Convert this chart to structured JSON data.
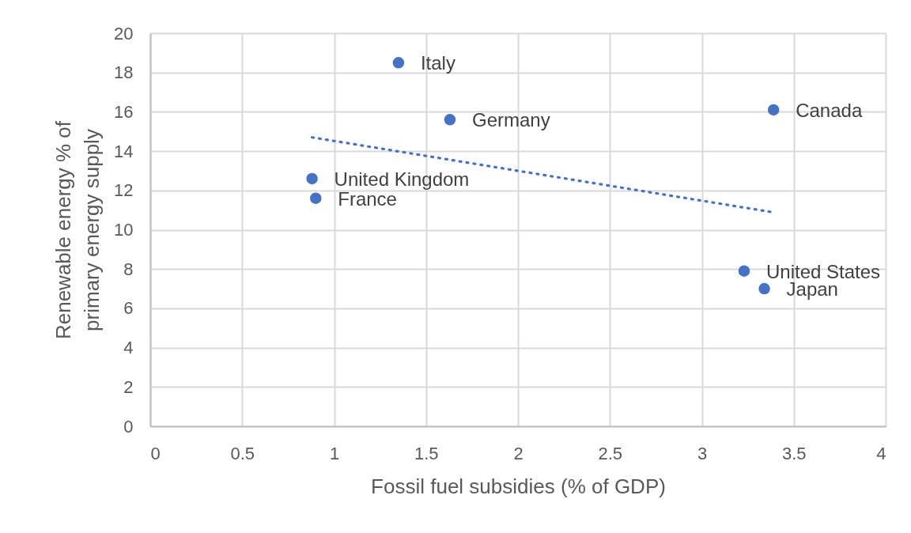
{
  "chart_data": {
    "type": "scatter",
    "xlabel": "Fossil fuel subsidies (% of GDP)",
    "ylabel": "Renewable energy % of primary energy supply",
    "xlim": [
      0,
      4
    ],
    "xticks": [
      0,
      0.5,
      1,
      1.5,
      2,
      2.5,
      3,
      3.5,
      4
    ],
    "ylim": [
      0,
      20
    ],
    "yticks": [
      0,
      2,
      4,
      6,
      8,
      10,
      12,
      14,
      16,
      18,
      20
    ],
    "grid": true,
    "series": [
      {
        "color": "#4472c4",
        "marker": "circle",
        "x": [
          1.35,
          1.63,
          3.39,
          0.88,
          0.9,
          3.23,
          3.34
        ],
        "values": [
          18.5,
          15.6,
          16.1,
          12.6,
          11.6,
          7.9,
          7.0
        ]
      },
      {
        "type": "line",
        "color": "#4472c4",
        "line_style": "dotted",
        "x": [
          0.88,
          3.38
        ],
        "values": [
          14.7,
          10.9
        ]
      }
    ],
    "annotations": [
      {
        "text": "Italy",
        "x": 1.35,
        "y": 18.5
      },
      {
        "text": "Germany",
        "x": 1.63,
        "y": 15.6
      },
      {
        "text": "Canada",
        "x": 3.39,
        "y": 16.1
      },
      {
        "text": "United Kingdom",
        "x": 0.88,
        "y": 12.6
      },
      {
        "text": "France",
        "x": 0.9,
        "y": 11.6
      },
      {
        "text": "United States",
        "x": 3.23,
        "y": 7.9
      },
      {
        "text": "Japan",
        "x": 3.34,
        "y": 7.0
      }
    ]
  }
}
